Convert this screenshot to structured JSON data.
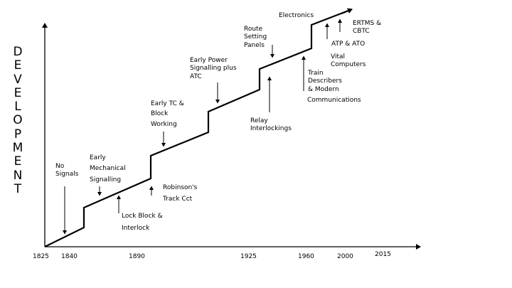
{
  "axis": {
    "ylabel": "DEVELOPMENT",
    "ticks": [
      "1825",
      "1840",
      "1890",
      "1925",
      "1960",
      "2000",
      "2015"
    ]
  },
  "annotations": {
    "no_signals": "No\nSignals",
    "early_mechanical": "Early\nMechanical\nSignalling",
    "lock_block": "Lock Block &\nInterlock",
    "robinsons": "Robinson's\nTrack Cct",
    "early_tc": "Early TC &\nBlock\nWorking",
    "early_power": "Early Power\nSignalling plus\nATC",
    "relay": "Relay\nInterlockings",
    "route_setting": "Route\nSetting\nPanels",
    "electronics": "Electronics",
    "train_describers": "Train\nDescribers\n& Modern",
    "communications": "Communications",
    "atp_ato": "ATP & ATO",
    "vital_computers": "Vital\nComputers",
    "ertms": "ERTMS &\nCBTC"
  }
}
